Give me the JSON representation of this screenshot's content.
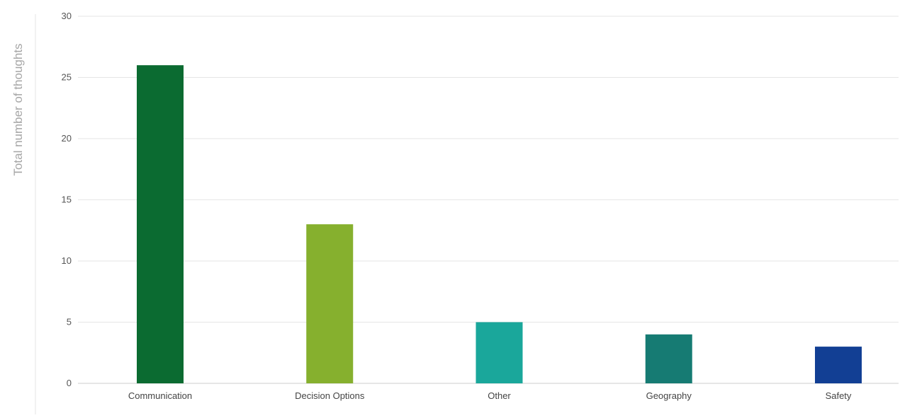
{
  "chart_data": {
    "type": "bar",
    "title": "",
    "xlabel": "",
    "ylabel": "Total number of thoughts",
    "categories": [
      "Communication",
      "Decision Options",
      "Other",
      "Geography",
      "Safety"
    ],
    "values": [
      26,
      13,
      5,
      4,
      3
    ],
    "colors": [
      "#0b6b31",
      "#86b02e",
      "#1aa79b",
      "#167b73",
      "#123f94"
    ],
    "ylim": [
      0,
      30
    ],
    "yticks": [
      0,
      5,
      10,
      15,
      20,
      25,
      30
    ],
    "grid": true,
    "legend": "none",
    "gridline_color": "#e6e6e6",
    "axis_line_color": "#cccccc"
  }
}
